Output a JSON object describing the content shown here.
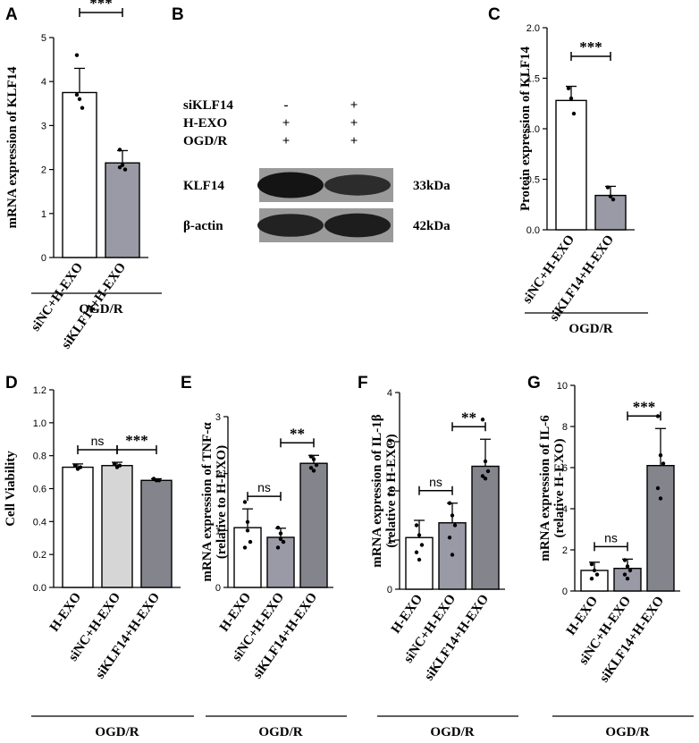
{
  "colors": {
    "white_bar": "#ffffff",
    "gray_bar": "#9a9aa6",
    "light_gray_bar": "#d6d6d6",
    "dark_gray_bar": "#84848c",
    "stroke": "#000000"
  },
  "chart_data": [
    {
      "panel": "A",
      "type": "bar",
      "ylabel": "mRNA expression of KLF14",
      "ylim": [
        0,
        5
      ],
      "yticks": [
        0,
        1,
        2,
        3,
        4,
        5
      ],
      "categories": [
        "siNC+H-EXO",
        "siKLF14+H-EXO"
      ],
      "values": [
        3.75,
        2.15
      ],
      "errors": [
        0.55,
        0.28
      ],
      "points": [
        [
          4.6,
          3.6,
          3.4,
          3.7
        ],
        [
          2.45,
          2.1,
          2.0,
          2.05
        ]
      ],
      "fills": [
        "white",
        "gray"
      ],
      "group_label": "OGD/R",
      "comparisons": [
        {
          "from": 0,
          "to": 1,
          "label": "***"
        }
      ]
    },
    {
      "panel": "C",
      "type": "bar",
      "ylabel": "Protein expression of KLF14",
      "ylim": [
        0,
        2
      ],
      "yticks": [
        "0.0",
        "0.5",
        "1.0",
        "1.5",
        "2.0"
      ],
      "categories": [
        "siNC+H-EXO",
        "siKLF14+H-EXO"
      ],
      "values": [
        1.28,
        0.34
      ],
      "errors": [
        0.14,
        0.09
      ],
      "points": [
        [
          1.4,
          1.3,
          1.15
        ],
        [
          0.42,
          0.33,
          0.3
        ]
      ],
      "fills": [
        "white",
        "gray"
      ],
      "group_label": "OGD/R",
      "comparisons": [
        {
          "from": 0,
          "to": 1,
          "label": "***"
        }
      ]
    },
    {
      "panel": "D",
      "type": "bar",
      "ylabel": "Cell Viability",
      "ylim": [
        0,
        1.2
      ],
      "yticks": [
        "0.0",
        "0.2",
        "0.4",
        "0.6",
        "0.8",
        "1.0",
        "1.2"
      ],
      "categories": [
        "H-EXO",
        "siNC+H-EXO",
        "siKLF14+H-EXO"
      ],
      "values": [
        0.73,
        0.74,
        0.65
      ],
      "errors": [
        0.02,
        0.02,
        0.01
      ],
      "points": [
        [
          0.74,
          0.72,
          0.73
        ],
        [
          0.75,
          0.73,
          0.74
        ],
        [
          0.66,
          0.65,
          0.65
        ]
      ],
      "fills": [
        "white",
        "light",
        "dark"
      ],
      "group_label": "OGD/R",
      "comparisons": [
        {
          "from": 0,
          "to": 1,
          "label": "ns"
        },
        {
          "from": 1,
          "to": 2,
          "label": "***"
        }
      ]
    },
    {
      "panel": "E",
      "type": "bar",
      "ylabel": "mRNA expression of TNF-α",
      "ylabel2": "(relative to H-EXO)",
      "ylim": [
        0,
        3
      ],
      "yticks": [
        0,
        1,
        2,
        3
      ],
      "categories": [
        "H-EXO",
        "siNC+H-EXO",
        "siKLF14+H-EXO"
      ],
      "values": [
        1.05,
        0.88,
        2.18
      ],
      "errors": [
        0.33,
        0.16,
        0.14
      ],
      "points": [
        [
          1.5,
          1.15,
          0.8,
          0.7,
          1.0
        ],
        [
          1.05,
          0.95,
          0.8,
          0.7,
          0.85
        ],
        [
          2.3,
          2.25,
          2.15,
          2.1,
          2.05
        ]
      ],
      "fills": [
        "white",
        "gray",
        "dark"
      ],
      "group_label": "OGD/R",
      "comparisons": [
        {
          "from": 0,
          "to": 1,
          "label": "ns"
        },
        {
          "from": 1,
          "to": 2,
          "label": "**"
        }
      ]
    },
    {
      "panel": "F",
      "type": "bar",
      "ylabel": "mRNA expression of IL-1β",
      "ylabel2": "(relative to H-EXO)",
      "ylim": [
        0,
        4
      ],
      "yticks": [
        0,
        1,
        2,
        3,
        4
      ],
      "categories": [
        "H-EXO",
        "siNC+H-EXO",
        "siKLF14+H-EXO"
      ],
      "values": [
        1.05,
        1.35,
        2.5
      ],
      "errors": [
        0.35,
        0.4,
        0.55
      ],
      "points": [
        [
          1.3,
          1.1,
          0.9,
          0.75,
          0.6
        ],
        [
          1.75,
          1.5,
          1.3,
          1.05,
          0.7
        ],
        [
          3.45,
          2.6,
          2.4,
          2.3,
          2.25
        ]
      ],
      "fills": [
        "white",
        "gray",
        "dark"
      ],
      "group_label": "OGD/R",
      "comparisons": [
        {
          "from": 0,
          "to": 1,
          "label": "ns"
        },
        {
          "from": 1,
          "to": 2,
          "label": "**"
        }
      ]
    },
    {
      "panel": "G",
      "type": "bar",
      "ylabel": "mRNA expression of IL-6",
      "ylabel2": "(relative H-EXO)",
      "ylim": [
        0,
        10
      ],
      "yticks": [
        0,
        2,
        4,
        6,
        8,
        10
      ],
      "categories": [
        "H-EXO",
        "siNC+H-EXO",
        "siKLF14+H-EXO"
      ],
      "values": [
        1.0,
        1.1,
        6.1
      ],
      "errors": [
        0.4,
        0.45,
        1.8
      ],
      "points": [
        [
          1.3,
          1.0,
          0.8,
          0.6
        ],
        [
          1.5,
          1.2,
          1.0,
          0.8,
          0.6
        ],
        [
          8.5,
          6.6,
          6.2,
          5.0,
          4.5
        ]
      ],
      "fills": [
        "white",
        "gray",
        "dark"
      ],
      "group_label": "OGD/R",
      "comparisons": [
        {
          "from": 0,
          "to": 1,
          "label": "ns"
        },
        {
          "from": 1,
          "to": 2,
          "label": "***"
        }
      ]
    }
  ],
  "blot": {
    "panel": "B",
    "conditions": [
      {
        "label": "siKLF14",
        "lane1": "-",
        "lane2": "+"
      },
      {
        "label": "H-EXO",
        "lane1": "+",
        "lane2": "+"
      },
      {
        "label": "OGD/R",
        "lane1": "+",
        "lane2": "+"
      }
    ],
    "bands": [
      {
        "label": "KLF14",
        "size": "33kDa",
        "intensity": [
          0.95,
          0.7
        ]
      },
      {
        "label": "β-actin",
        "size": "42kDa",
        "intensity": [
          0.8,
          0.85
        ]
      }
    ]
  }
}
